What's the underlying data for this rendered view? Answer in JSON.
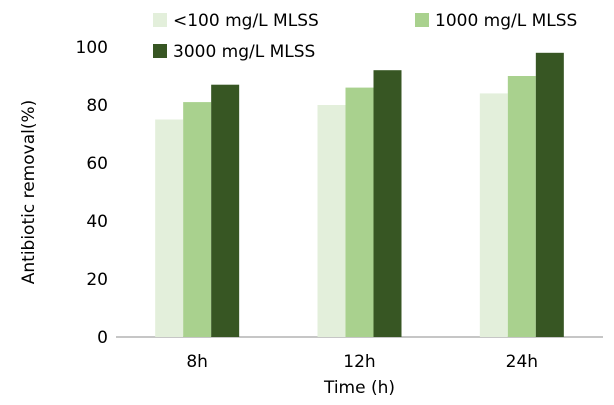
{
  "chart_data": {
    "type": "bar",
    "title": "",
    "xlabel": "Time (h)",
    "ylabel": "Antibiotic removal(%)",
    "ylim": [
      0,
      100
    ],
    "yticks": [
      0,
      20,
      40,
      60,
      80,
      100
    ],
    "categories": [
      "8h",
      "12h",
      "24h"
    ],
    "series": [
      {
        "name": "<100 mg/L MLSS",
        "color": "#e3efdb",
        "values": [
          75,
          80,
          84
        ]
      },
      {
        "name": "1000 mg/L MLSS",
        "color": "#a9d18e",
        "values": [
          81,
          86,
          90
        ]
      },
      {
        "name": "3000 mg/L MLSS",
        "color": "#375623",
        "values": [
          87,
          92,
          98
        ]
      }
    ],
    "grid": false,
    "legend_position": "top"
  }
}
